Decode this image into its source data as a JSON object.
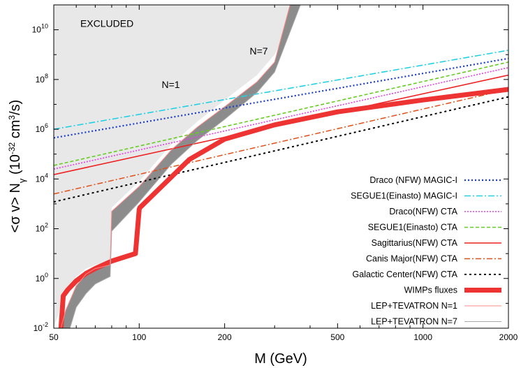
{
  "chart_data": {
    "type": "line",
    "title": "",
    "xlabel": "M (GeV)",
    "ylabel": "<σ v> N_γ (10⁻³² cm³/s)",
    "xscale": "log",
    "yscale": "log",
    "xlim": [
      50,
      2000
    ],
    "ylim": [
      0.01,
      100000000000.0
    ],
    "grid": false,
    "legend_position": "bottom-right",
    "x_ticks": [
      {
        "value": 50,
        "label": "50"
      },
      {
        "value": 100,
        "label": "100"
      },
      {
        "value": 200,
        "label": "200"
      },
      {
        "value": 500,
        "label": "500"
      },
      {
        "value": 1000,
        "label": "1000"
      },
      {
        "value": 2000,
        "label": "2000"
      }
    ],
    "y_ticks": [
      {
        "value": 0.01,
        "base": "10",
        "exp": "-2"
      },
      {
        "value": 1,
        "base": "10",
        "exp": "0"
      },
      {
        "value": 100,
        "base": "10",
        "exp": "2"
      },
      {
        "value": 10000,
        "base": "10",
        "exp": "4"
      },
      {
        "value": 1000000,
        "base": "10",
        "exp": "6"
      },
      {
        "value": 100000000,
        "base": "10",
        "exp": "8"
      },
      {
        "value": 10000000000,
        "base": "10",
        "exp": "10"
      }
    ],
    "annotations": [
      {
        "text": "EXCLUDED",
        "x": 62,
        "y": 13000000000.0
      },
      {
        "text": "N=1",
        "x": 120,
        "y": 45000000.0
      },
      {
        "text": "N=7",
        "x": 245,
        "y": 1000000000.0
      }
    ],
    "excluded_region": {
      "color": "#e8e8e8",
      "x": [
        50,
        55,
        60,
        65,
        70,
        79,
        80,
        100,
        130,
        160,
        200,
        260,
        300,
        365
      ],
      "y": [
        0.01,
        0.3,
        1.2,
        2.5,
        3.5,
        5,
        700,
        8000,
        250000,
        2000000,
        15000000,
        150000000,
        1000000000,
        100000000000.0
      ]
    },
    "band_N1": {
      "color": "#8c8c8c",
      "x": [
        53,
        55,
        60,
        65,
        70,
        79,
        80,
        100,
        130,
        160,
        200,
        260,
        300,
        340
      ],
      "y": [
        0.01,
        0.05,
        0.5,
        1.5,
        2.5,
        3.5,
        500,
        5000,
        150000,
        1200000,
        8000000,
        80000000,
        500000000,
        100000000000.0
      ]
    },
    "band_N7": {
      "color": "#8c8c8c",
      "x": [
        57,
        60,
        65,
        70,
        79,
        80,
        100,
        130,
        160,
        200,
        260,
        300,
        370
      ],
      "y": [
        0.01,
        0.07,
        0.25,
        0.6,
        1.2,
        80,
        1200,
        40000,
        350000,
        2500000,
        30000000,
        200000000,
        100000000000.0
      ]
    },
    "series": [
      {
        "name": "Draco (NFW) MAGIC-I",
        "color": "#1a3ccc",
        "dash": "2,3",
        "width": 2.2,
        "x": [
          50,
          2000
        ],
        "y": [
          450000,
          700000000
        ]
      },
      {
        "name": "SEGUE1(Einasto) MAGIC-I",
        "color": "#22d0e6",
        "dash": "9,3,2,3",
        "width": 1.6,
        "x": [
          50,
          2000
        ],
        "y": [
          1000000,
          1500000000
        ]
      },
      {
        "name": "Draco(NFW) CTA",
        "color": "#e040e0",
        "dash": "2,2",
        "width": 1.6,
        "x": [
          50,
          2000
        ],
        "y": [
          25000,
          300000000
        ]
      },
      {
        "name": "SEGUE1(Einasto) CTA",
        "color": "#66cc22",
        "dash": "5,3",
        "width": 1.6,
        "x": [
          50,
          2000
        ],
        "y": [
          35000,
          500000000
        ]
      },
      {
        "name": "Sagittarius(NFW) CTA",
        "color": "#ee2222",
        "dash": "",
        "width": 1.6,
        "x": [
          50,
          2000
        ],
        "y": [
          15000,
          150000000
        ]
      },
      {
        "name": "Canis Major(NFW) CTA",
        "color": "#e0501a",
        "dash": "8,3,2,3",
        "width": 1.5,
        "x": [
          50,
          2000
        ],
        "y": [
          2500,
          40000000
        ]
      },
      {
        "name": "Galactic Center(NFW) CTA",
        "color": "#000000",
        "dash": "3,4",
        "width": 2.0,
        "x": [
          50,
          2000
        ],
        "y": [
          1200,
          20000000
        ]
      },
      {
        "name": "WIMPs fluxes",
        "color": "#ee3333",
        "dash": "",
        "width": 7,
        "x": [
          53,
          54,
          56,
          60,
          65,
          70,
          80,
          97,
          100,
          100.5,
          120,
          150,
          200,
          300,
          500,
          1000,
          2000
        ],
        "y": [
          0.01,
          0.2,
          0.35,
          0.8,
          1.6,
          2.5,
          5,
          10,
          600,
          700,
          5000,
          60000,
          400000,
          1500000,
          5000000,
          15000000,
          40000000
        ]
      },
      {
        "name": "LEP+TEVATRON N=1",
        "color": "#ff8888",
        "dash": "",
        "width": 1,
        "x": [
          53,
          55,
          60,
          65,
          70,
          79,
          80,
          100,
          130,
          160,
          200,
          260,
          300,
          340
        ],
        "y": [
          0.01,
          0.05,
          0.5,
          1.5,
          2.5,
          3.5,
          500,
          5000,
          150000,
          1200000,
          8000000,
          80000000,
          500000000,
          100000000000.0
        ]
      },
      {
        "name": "LEP+TEVATRON N=7",
        "color": "#aaaaaa",
        "dash": "",
        "width": 1,
        "x": [
          57,
          60,
          65,
          70,
          79,
          80,
          100,
          130,
          160,
          200,
          260,
          300,
          370
        ],
        "y": [
          0.01,
          0.07,
          0.25,
          0.6,
          1.2,
          80,
          1200,
          40000,
          350000,
          2500000,
          30000000,
          200000000,
          100000000000.0
        ]
      }
    ]
  }
}
